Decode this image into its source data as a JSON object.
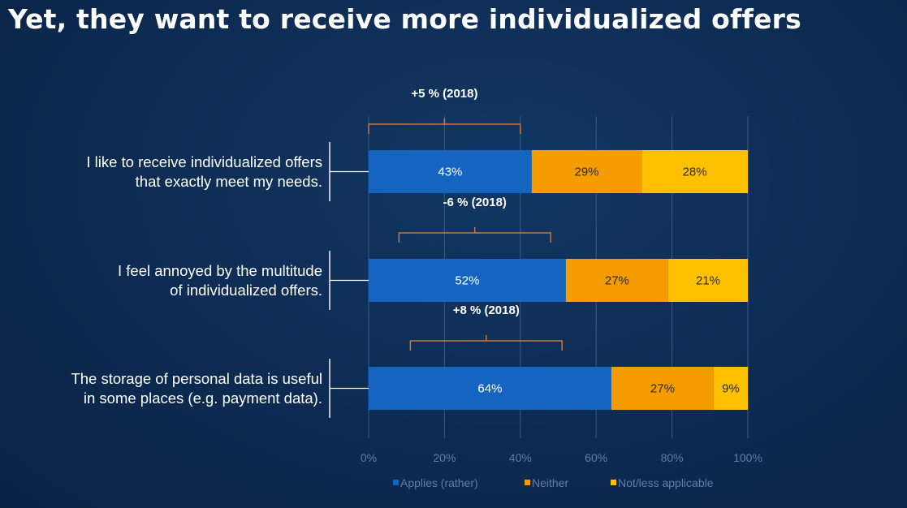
{
  "slide": {
    "title": "Yet, they want to receive more individualized offers"
  },
  "colors": {
    "applies": "#1565c0",
    "neither": "#f59c00",
    "not_applicable": "#ffc000",
    "bracket": "#c9773a",
    "grid": "#3a5a86",
    "axis_text": "#5f7fa8"
  },
  "chart_data": {
    "type": "bar",
    "orientation": "horizontal",
    "stacked": true,
    "categories": [
      [
        "I like to receive individualized offers",
        "that exactly meet my needs."
      ],
      [
        "I feel annoyed by the multitude",
        "of individualized offers."
      ],
      [
        "The storage of personal data is useful",
        "in some places (e.g. payment data)."
      ]
    ],
    "series": [
      {
        "name": "Applies (rather)",
        "values": [
          43,
          52,
          64
        ]
      },
      {
        "name": "Neither",
        "values": [
          29,
          27,
          27
        ]
      },
      {
        "name": "Not/less applicable",
        "values": [
          28,
          21,
          9
        ]
      }
    ],
    "xlim": [
      0,
      100
    ],
    "x_ticks": [
      "0%",
      "20%",
      "40%",
      "60%",
      "80%",
      "100%"
    ],
    "grid": true,
    "legend_position": "bottom",
    "annotations": [
      {
        "category_index": 0,
        "label": "+5 % (2018)",
        "from": 0,
        "to": 40
      },
      {
        "category_index": 1,
        "label": "-6 % (2018)",
        "from": 8,
        "to": 48
      },
      {
        "category_index": 2,
        "label": "+8 % (2018)",
        "from": 11,
        "to": 51
      }
    ]
  }
}
